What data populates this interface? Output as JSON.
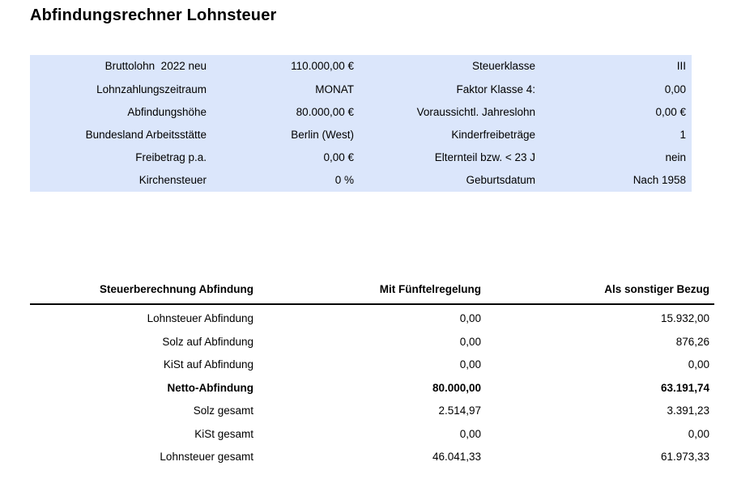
{
  "page": {
    "title": "Abfindungsrechner Lohnsteuer"
  },
  "colors": {
    "panel_background": "#dbe6fb",
    "text": "#000000",
    "header_rule": "#000000"
  },
  "inputs": {
    "left": [
      {
        "label": "Bruttolohn  2022 neu",
        "value": "110.000,00 €"
      },
      {
        "label": "Lohnzahlungszeitraum",
        "value": "MONAT"
      },
      {
        "label": "Abfindungshöhe",
        "value": "80.000,00 €"
      },
      {
        "label": "Bundesland Arbeitsstätte",
        "value": "Berlin (West)"
      },
      {
        "label": "Freibetrag p.a.",
        "value": "0,00 €"
      },
      {
        "label": "Kirchensteuer",
        "value": "0 %"
      }
    ],
    "right": [
      {
        "label": "Steuerklasse",
        "value": "III"
      },
      {
        "label": "Faktor Klasse 4:",
        "value": "0,00"
      },
      {
        "label": "Voraussichtl. Jahreslohn",
        "value": "0,00 €"
      },
      {
        "label": "Kinderfreibeträge",
        "value": "1"
      },
      {
        "label": "Elternteil bzw. < 23 J",
        "value": "nein"
      },
      {
        "label": "Geburtsdatum",
        "value": "Nach 1958"
      }
    ]
  },
  "results": {
    "headers": {
      "col1": "Steuerberechnung Abfindung",
      "col2": "Mit Fünftelregelung",
      "col3": "Als sonstiger Bezug"
    },
    "rows": [
      {
        "label": "Lohnsteuer Abfindung",
        "fuenftel": "0,00",
        "sonstig": "15.932,00"
      },
      {
        "label": "Solz auf Abfindung",
        "fuenftel": "0,00",
        "sonstig": "876,26"
      },
      {
        "label": "KiSt auf Abfindung",
        "fuenftel": "0,00",
        "sonstig": "0,00"
      },
      {
        "label": "Netto-Abfindung",
        "fuenftel": "80.000,00",
        "sonstig": "63.191,74"
      },
      {
        "label": "Solz gesamt",
        "fuenftel": "2.514,97",
        "sonstig": "3.391,23"
      },
      {
        "label": "KiSt gesamt",
        "fuenftel": "0,00",
        "sonstig": "0,00"
      },
      {
        "label": "Lohnsteuer gesamt",
        "fuenftel": "46.041,33",
        "sonstig": "61.973,33"
      }
    ]
  }
}
